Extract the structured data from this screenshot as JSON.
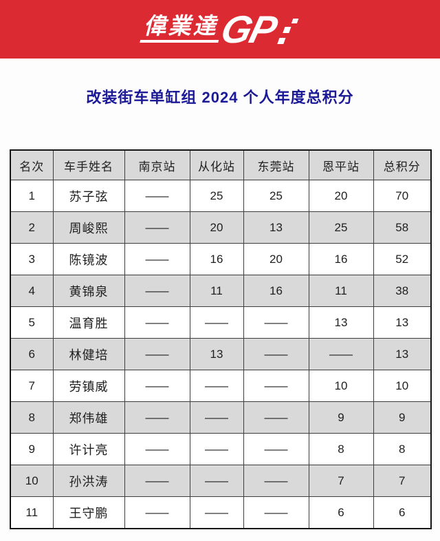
{
  "banner": {
    "logo_cn": "偉業達",
    "logo_gp": "GP",
    "bg_color": "#dc2a33",
    "logo_color": "#ffffff"
  },
  "title": "改装街车单缸组 2024 个人年度总积分",
  "title_color": "#1c1a96",
  "chart_data": {
    "type": "table",
    "title": "改装街车单缸组 2024 个人年度总积分",
    "columns": [
      "名次",
      "车手姓名",
      "南京站",
      "从化站",
      "东莞站",
      "恩平站",
      "总积分"
    ],
    "rows": [
      [
        "1",
        "苏子弦",
        "——",
        "25",
        "25",
        "20",
        "70"
      ],
      [
        "2",
        "周峻熙",
        "——",
        "20",
        "13",
        "25",
        "58"
      ],
      [
        "3",
        "陈镜波",
        "——",
        "16",
        "20",
        "16",
        "52"
      ],
      [
        "4",
        "黄锦泉",
        "——",
        "11",
        "16",
        "11",
        "38"
      ],
      [
        "5",
        "温育胜",
        "——",
        "——",
        "——",
        "13",
        "13"
      ],
      [
        "6",
        "林健培",
        "——",
        "13",
        "——",
        "——",
        "13"
      ],
      [
        "7",
        "劳镇威",
        "——",
        "——",
        "——",
        "10",
        "10"
      ],
      [
        "8",
        "郑伟雄",
        "——",
        "——",
        "——",
        "9",
        "9"
      ],
      [
        "9",
        "许计亮",
        "——",
        "——",
        "——",
        "8",
        "8"
      ],
      [
        "10",
        "孙洪涛",
        "——",
        "——",
        "——",
        "7",
        "7"
      ],
      [
        "11",
        "王守鹏",
        "——",
        "——",
        "——",
        "6",
        "6"
      ]
    ],
    "empty_cell_marker": "——",
    "header_bg": "#d9d9d9",
    "zebra_row_bg": "#d9d9d9",
    "legend_position": "none",
    "grid": true
  }
}
